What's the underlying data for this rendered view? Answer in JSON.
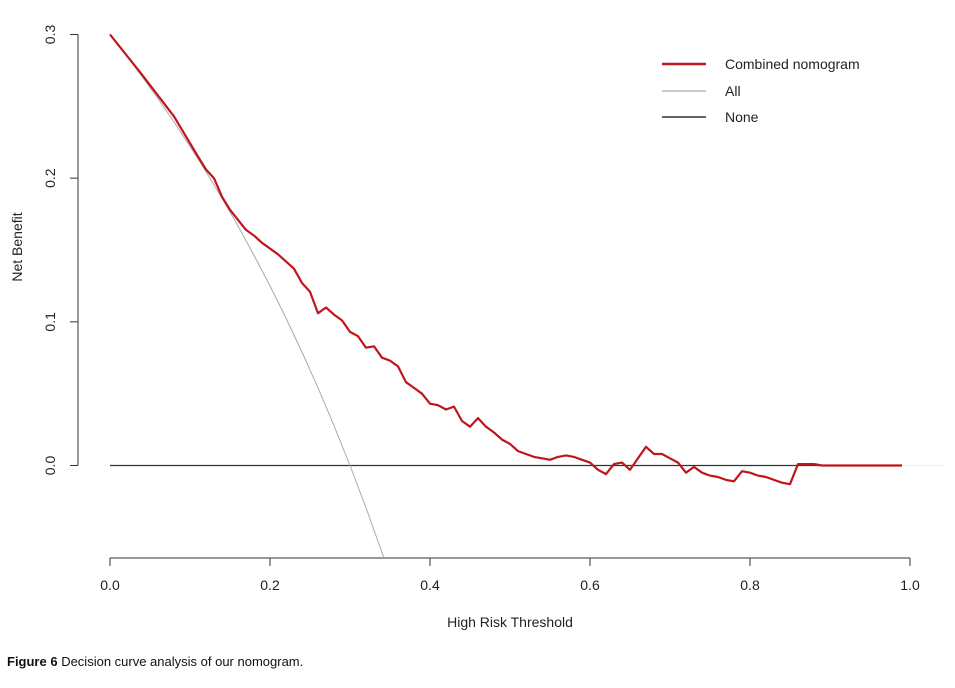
{
  "chart_data": {
    "type": "line",
    "title": "",
    "xlabel": "High Risk Threshold",
    "ylabel": "Net Benefit",
    "xlim": [
      0,
      1.0
    ],
    "ylim": [
      -0.064,
      0.3
    ],
    "xticks": [
      "0.0",
      "0.2",
      "0.4",
      "0.6",
      "0.8",
      "1.0"
    ],
    "xtick_values": [
      0,
      0.2,
      0.4,
      0.6,
      0.8,
      1.0
    ],
    "yticks": [
      "0.0",
      "0.1",
      "0.2",
      "0.3"
    ],
    "ytick_values": [
      0,
      0.1,
      0.2,
      0.3
    ],
    "grid": false,
    "legend_position": "top-right",
    "series": [
      {
        "name": "Combined nomogram",
        "color": "#c0161b",
        "points": [
          [
            0,
            0.3
          ],
          [
            0.04,
            0.272
          ],
          [
            0.08,
            0.243
          ],
          [
            0.11,
            0.215
          ],
          [
            0.12,
            0.206
          ],
          [
            0.13,
            0.2
          ],
          [
            0.14,
            0.187
          ],
          [
            0.15,
            0.178
          ],
          [
            0.17,
            0.164
          ],
          [
            0.18,
            0.16
          ],
          [
            0.19,
            0.155
          ],
          [
            0.21,
            0.147
          ],
          [
            0.23,
            0.137
          ],
          [
            0.24,
            0.127
          ],
          [
            0.25,
            0.121
          ],
          [
            0.26,
            0.106
          ],
          [
            0.27,
            0.11
          ],
          [
            0.28,
            0.105
          ],
          [
            0.29,
            0.101
          ],
          [
            0.3,
            0.093
          ],
          [
            0.31,
            0.09
          ],
          [
            0.32,
            0.082
          ],
          [
            0.33,
            0.083
          ],
          [
            0.34,
            0.075
          ],
          [
            0.35,
            0.073
          ],
          [
            0.36,
            0.069
          ],
          [
            0.37,
            0.058
          ],
          [
            0.38,
            0.054
          ],
          [
            0.39,
            0.05
          ],
          [
            0.4,
            0.043
          ],
          [
            0.41,
            0.042
          ],
          [
            0.42,
            0.039
          ],
          [
            0.43,
            0.041
          ],
          [
            0.44,
            0.031
          ],
          [
            0.45,
            0.027
          ],
          [
            0.46,
            0.033
          ],
          [
            0.47,
            0.027
          ],
          [
            0.48,
            0.023
          ],
          [
            0.49,
            0.018
          ],
          [
            0.5,
            0.015
          ],
          [
            0.51,
            0.01
          ],
          [
            0.52,
            0.008
          ],
          [
            0.53,
            0.006
          ],
          [
            0.54,
            0.005
          ],
          [
            0.55,
            0.004
          ],
          [
            0.56,
            0.006
          ],
          [
            0.57,
            0.007
          ],
          [
            0.58,
            0.006
          ],
          [
            0.59,
            0.004
          ],
          [
            0.6,
            0.002
          ],
          [
            0.61,
            -0.003
          ],
          [
            0.62,
            -0.006
          ],
          [
            0.63,
            0.001
          ],
          [
            0.64,
            0.002
          ],
          [
            0.65,
            -0.003
          ],
          [
            0.67,
            0.013
          ],
          [
            0.68,
            0.008
          ],
          [
            0.69,
            0.008
          ],
          [
            0.7,
            0.005
          ],
          [
            0.71,
            0.002
          ],
          [
            0.72,
            -0.005
          ],
          [
            0.73,
            -0.001
          ],
          [
            0.74,
            -0.005
          ],
          [
            0.75,
            -0.007
          ],
          [
            0.76,
            -0.008
          ],
          [
            0.77,
            -0.01
          ],
          [
            0.78,
            -0.011
          ],
          [
            0.79,
            -0.004
          ],
          [
            0.8,
            -0.005
          ],
          [
            0.81,
            -0.007
          ],
          [
            0.82,
            -0.008
          ],
          [
            0.83,
            -0.01
          ],
          [
            0.84,
            -0.012
          ],
          [
            0.85,
            -0.013
          ],
          [
            0.86,
            0.001
          ],
          [
            0.88,
            0.001
          ],
          [
            0.89,
            0.0
          ],
          [
            0.99,
            0.0
          ]
        ]
      },
      {
        "name": "All",
        "color": "#aaaaaa",
        "points": [
          [
            0,
            0.3
          ],
          [
            0.02,
            0.2857
          ],
          [
            0.04,
            0.2708
          ],
          [
            0.06,
            0.2553
          ],
          [
            0.08,
            0.2391
          ],
          [
            0.1,
            0.2222
          ],
          [
            0.12,
            0.2045
          ],
          [
            0.14,
            0.186
          ],
          [
            0.16,
            0.1667
          ],
          [
            0.18,
            0.1463
          ],
          [
            0.2,
            0.125
          ],
          [
            0.22,
            0.1026
          ],
          [
            0.24,
            0.0789
          ],
          [
            0.26,
            0.0541
          ],
          [
            0.28,
            0.0278
          ],
          [
            0.3,
            0.0
          ],
          [
            0.32,
            -0.0294
          ],
          [
            0.34,
            -0.0606
          ],
          [
            0.343,
            -0.0654
          ]
        ]
      },
      {
        "name": "None",
        "color": "#333333",
        "points": [
          [
            0,
            0
          ],
          [
            0.99,
            0
          ]
        ]
      }
    ]
  },
  "caption": {
    "label": "Figure 6",
    "text": " Decision curve analysis of our nomogram."
  }
}
